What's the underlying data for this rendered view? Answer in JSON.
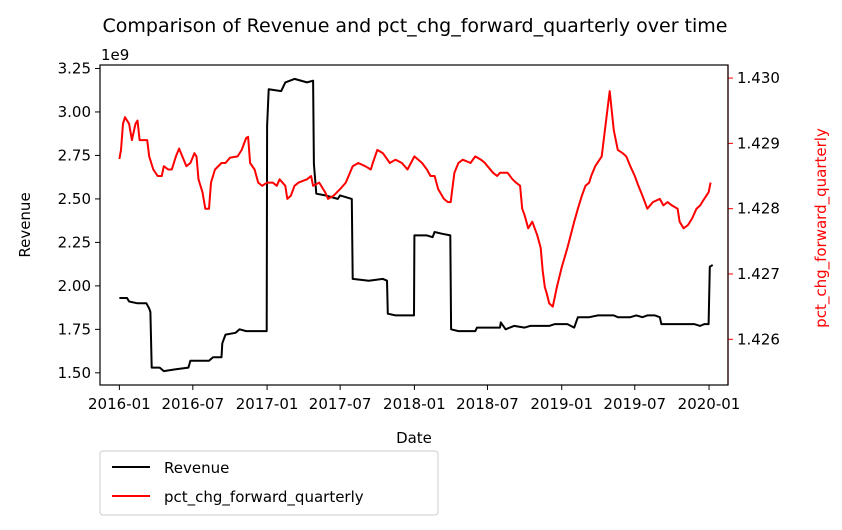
{
  "chart_data": {
    "type": "line",
    "title": "Comparison of Revenue and pct_chg_forward_quarterly over time",
    "xlabel": "Date",
    "ylabel": "Revenue",
    "y2label": "pct_chg_forward_quarterly",
    "y_offset_text": "1e9",
    "x_range": [
      "2015-11-14",
      "2020-02-17"
    ],
    "xticks": [
      "2016-01",
      "2016-07",
      "2017-01",
      "2017-07",
      "2018-01",
      "2018-07",
      "2019-01",
      "2019-07",
      "2020-01"
    ],
    "ylim": [
      1.43,
      3.27
    ],
    "yticks": [
      1.5,
      1.75,
      2.0,
      2.25,
      2.5,
      2.75,
      3.0,
      3.25
    ],
    "ytick_labels": [
      "1.50",
      "1.75",
      "2.00",
      "2.25",
      "2.50",
      "2.75",
      "3.00",
      "3.25"
    ],
    "y2lim": [
      1.4253,
      1.4302
    ],
    "y2ticks": [
      1.426,
      1.427,
      1.428,
      1.429,
      1.43
    ],
    "y2tick_labels": [
      "1.426",
      "1.427",
      "1.428",
      "1.429",
      "1.430"
    ],
    "legend_position": "below-left",
    "series": [
      {
        "name": "Revenue",
        "axis": "left",
        "color": "#000000",
        "points": [
          [
            "2016-01-01",
            1.93
          ],
          [
            "2016-01-20",
            1.93
          ],
          [
            "2016-01-25",
            1.91
          ],
          [
            "2016-02-15",
            1.9
          ],
          [
            "2016-03-08",
            1.9
          ],
          [
            "2016-03-15",
            1.87
          ],
          [
            "2016-03-18",
            1.85
          ],
          [
            "2016-03-21",
            1.53
          ],
          [
            "2016-04-10",
            1.53
          ],
          [
            "2016-04-20",
            1.51
          ],
          [
            "2016-05-20",
            1.52
          ],
          [
            "2016-06-20",
            1.53
          ],
          [
            "2016-06-25",
            1.57
          ],
          [
            "2016-07-10",
            1.57
          ],
          [
            "2016-08-10",
            1.57
          ],
          [
            "2016-08-20",
            1.59
          ],
          [
            "2016-09-10",
            1.59
          ],
          [
            "2016-09-12",
            1.67
          ],
          [
            "2016-09-20",
            1.72
          ],
          [
            "2016-10-15",
            1.73
          ],
          [
            "2016-10-25",
            1.75
          ],
          [
            "2016-11-10",
            1.74
          ],
          [
            "2016-12-25",
            1.74
          ],
          [
            "2016-12-31",
            1.74
          ],
          [
            "2017-01-01",
            2.92
          ],
          [
            "2017-01-05",
            3.13
          ],
          [
            "2017-02-05",
            3.12
          ],
          [
            "2017-02-15",
            3.17
          ],
          [
            "2017-03-10",
            3.19
          ],
          [
            "2017-04-10",
            3.17
          ],
          [
            "2017-04-25",
            3.18
          ],
          [
            "2017-04-27",
            2.7
          ],
          [
            "2017-05-03",
            2.53
          ],
          [
            "2017-05-25",
            2.52
          ],
          [
            "2017-06-25",
            2.5
          ],
          [
            "2017-07-01",
            2.52
          ],
          [
            "2017-07-30",
            2.5
          ],
          [
            "2017-08-01",
            2.04
          ],
          [
            "2017-09-10",
            2.03
          ],
          [
            "2017-10-15",
            2.04
          ],
          [
            "2017-10-25",
            2.03
          ],
          [
            "2017-10-27",
            1.84
          ],
          [
            "2017-11-15",
            1.83
          ],
          [
            "2017-12-20",
            1.83
          ],
          [
            "2017-12-31",
            1.83
          ],
          [
            "2018-01-01",
            2.29
          ],
          [
            "2018-02-01",
            2.29
          ],
          [
            "2018-02-15",
            2.28
          ],
          [
            "2018-02-20",
            2.31
          ],
          [
            "2018-03-10",
            2.3
          ],
          [
            "2018-03-31",
            2.29
          ],
          [
            "2018-04-02",
            1.75
          ],
          [
            "2018-04-20",
            1.74
          ],
          [
            "2018-06-01",
            1.74
          ],
          [
            "2018-06-05",
            1.76
          ],
          [
            "2018-07-10",
            1.76
          ],
          [
            "2018-08-01",
            1.76
          ],
          [
            "2018-08-03",
            1.79
          ],
          [
            "2018-08-15",
            1.75
          ],
          [
            "2018-09-05",
            1.77
          ],
          [
            "2018-10-01",
            1.76
          ],
          [
            "2018-10-15",
            1.77
          ],
          [
            "2018-11-01",
            1.77
          ],
          [
            "2018-12-01",
            1.77
          ],
          [
            "2018-12-15",
            1.78
          ],
          [
            "2019-01-15",
            1.78
          ],
          [
            "2019-02-01",
            1.76
          ],
          [
            "2019-02-10",
            1.82
          ],
          [
            "2019-03-10",
            1.82
          ],
          [
            "2019-04-01",
            1.83
          ],
          [
            "2019-05-10",
            1.83
          ],
          [
            "2019-05-20",
            1.82
          ],
          [
            "2019-06-20",
            1.82
          ],
          [
            "2019-07-05",
            1.83
          ],
          [
            "2019-07-20",
            1.82
          ],
          [
            "2019-08-01",
            1.83
          ],
          [
            "2019-08-20",
            1.83
          ],
          [
            "2019-09-01",
            1.82
          ],
          [
            "2019-09-05",
            1.78
          ],
          [
            "2019-10-10",
            1.78
          ],
          [
            "2019-10-20",
            1.78
          ],
          [
            "2019-11-10",
            1.78
          ],
          [
            "2019-11-25",
            1.78
          ],
          [
            "2019-12-10",
            1.77
          ],
          [
            "2019-12-20",
            1.78
          ],
          [
            "2019-12-31",
            1.78
          ],
          [
            "2020-01-03",
            2.11
          ],
          [
            "2020-01-10",
            2.12
          ]
        ]
      },
      {
        "name": "pct_chg_forward_quarterly",
        "axis": "right",
        "color": "#ff0000",
        "points": [
          [
            "2016-01-01",
            1.42876
          ],
          [
            "2016-01-05",
            1.4289
          ],
          [
            "2016-01-10",
            1.4293
          ],
          [
            "2016-01-15",
            1.4294
          ],
          [
            "2016-01-25",
            1.4293
          ],
          [
            "2016-02-01",
            1.42905
          ],
          [
            "2016-02-10",
            1.4293
          ],
          [
            "2016-02-15",
            1.42935
          ],
          [
            "2016-02-20",
            1.42905
          ],
          [
            "2016-03-10",
            1.42905
          ],
          [
            "2016-03-15",
            1.4288
          ],
          [
            "2016-03-25",
            1.4286
          ],
          [
            "2016-04-05",
            1.4285
          ],
          [
            "2016-04-15",
            1.4285
          ],
          [
            "2016-04-20",
            1.42865
          ],
          [
            "2016-05-01",
            1.4286
          ],
          [
            "2016-05-10",
            1.4286
          ],
          [
            "2016-05-20",
            1.4288
          ],
          [
            "2016-05-28",
            1.42892
          ],
          [
            "2016-06-05",
            1.4288
          ],
          [
            "2016-06-15",
            1.42865
          ],
          [
            "2016-06-25",
            1.4287
          ],
          [
            "2016-07-05",
            1.42885
          ],
          [
            "2016-07-10",
            1.4288
          ],
          [
            "2016-07-15",
            1.42845
          ],
          [
            "2016-07-25",
            1.42825
          ],
          [
            "2016-08-01",
            1.428
          ],
          [
            "2016-08-10",
            1.428
          ],
          [
            "2016-08-15",
            1.4284
          ],
          [
            "2016-08-25",
            1.4286
          ],
          [
            "2016-09-10",
            1.4287
          ],
          [
            "2016-09-20",
            1.4287
          ],
          [
            "2016-10-01",
            1.42878
          ],
          [
            "2016-10-20",
            1.4288
          ],
          [
            "2016-10-30",
            1.4289
          ],
          [
            "2016-11-10",
            1.42908
          ],
          [
            "2016-11-15",
            1.4291
          ],
          [
            "2016-11-20",
            1.4287
          ],
          [
            "2016-12-01",
            1.4286
          ],
          [
            "2016-12-10",
            1.4284
          ],
          [
            "2016-12-20",
            1.42835
          ],
          [
            "2017-01-01",
            1.4284
          ],
          [
            "2017-01-15",
            1.4284
          ],
          [
            "2017-01-25",
            1.42835
          ],
          [
            "2017-02-01",
            1.42845
          ],
          [
            "2017-02-15",
            1.42835
          ],
          [
            "2017-02-20",
            1.42815
          ],
          [
            "2017-03-01",
            1.4282
          ],
          [
            "2017-03-10",
            1.42835
          ],
          [
            "2017-03-20",
            1.4284
          ],
          [
            "2017-04-10",
            1.42845
          ],
          [
            "2017-04-20",
            1.4285
          ],
          [
            "2017-04-25",
            1.42835
          ],
          [
            "2017-05-10",
            1.4284
          ],
          [
            "2017-05-20",
            1.4283
          ],
          [
            "2017-05-25",
            1.42825
          ],
          [
            "2017-06-01",
            1.42815
          ],
          [
            "2017-06-15",
            1.4282
          ],
          [
            "2017-07-01",
            1.4283
          ],
          [
            "2017-07-15",
            1.4284
          ],
          [
            "2017-08-01",
            1.42865
          ],
          [
            "2017-08-15",
            1.4287
          ],
          [
            "2017-09-01",
            1.42865
          ],
          [
            "2017-09-15",
            1.4286
          ],
          [
            "2017-09-20",
            1.4287
          ],
          [
            "2017-10-01",
            1.4289
          ],
          [
            "2017-10-15",
            1.42885
          ],
          [
            "2017-11-01",
            1.4287
          ],
          [
            "2017-11-15",
            1.42875
          ],
          [
            "2017-12-01",
            1.4287
          ],
          [
            "2017-12-15",
            1.4286
          ],
          [
            "2018-01-01",
            1.4288
          ],
          [
            "2018-01-20",
            1.4287
          ],
          [
            "2018-02-01",
            1.4286
          ],
          [
            "2018-02-10",
            1.4285
          ],
          [
            "2018-02-20",
            1.4285
          ],
          [
            "2018-03-01",
            1.4283
          ],
          [
            "2018-03-15",
            1.42815
          ],
          [
            "2018-03-25",
            1.4281
          ],
          [
            "2018-04-01",
            1.4281
          ],
          [
            "2018-04-05",
            1.4283
          ],
          [
            "2018-04-10",
            1.42855
          ],
          [
            "2018-04-20",
            1.4287
          ],
          [
            "2018-05-01",
            1.42875
          ],
          [
            "2018-05-20",
            1.4287
          ],
          [
            "2018-06-01",
            1.4288
          ],
          [
            "2018-06-15",
            1.42875
          ],
          [
            "2018-06-25",
            1.4287
          ],
          [
            "2018-07-01",
            1.42865
          ],
          [
            "2018-07-15",
            1.42855
          ],
          [
            "2018-07-25",
            1.4285
          ],
          [
            "2018-08-01",
            1.42855
          ],
          [
            "2018-08-20",
            1.42855
          ],
          [
            "2018-09-01",
            1.42845
          ],
          [
            "2018-09-10",
            1.4284
          ],
          [
            "2018-09-20",
            1.42835
          ],
          [
            "2018-09-25",
            1.428
          ],
          [
            "2018-10-01",
            1.4279
          ],
          [
            "2018-10-10",
            1.4277
          ],
          [
            "2018-10-20",
            1.4278
          ],
          [
            "2018-11-01",
            1.4276
          ],
          [
            "2018-11-10",
            1.4274
          ],
          [
            "2018-11-15",
            1.42705
          ],
          [
            "2018-11-20",
            1.4268
          ],
          [
            "2018-11-25",
            1.4267
          ],
          [
            "2018-12-01",
            1.42655
          ],
          [
            "2018-12-10",
            1.4265
          ],
          [
            "2018-12-20",
            1.4268
          ],
          [
            "2019-01-01",
            1.4271
          ],
          [
            "2019-01-15",
            1.4274
          ],
          [
            "2019-02-01",
            1.4278
          ],
          [
            "2019-02-10",
            1.428
          ],
          [
            "2019-02-20",
            1.4282
          ],
          [
            "2019-03-01",
            1.42835
          ],
          [
            "2019-03-10",
            1.4284
          ],
          [
            "2019-03-15",
            1.4285
          ],
          [
            "2019-03-25",
            1.42865
          ],
          [
            "2019-04-10",
            1.4288
          ],
          [
            "2019-04-20",
            1.4293
          ],
          [
            "2019-04-30",
            1.4298
          ],
          [
            "2019-05-10",
            1.4292
          ],
          [
            "2019-05-20",
            1.4289
          ],
          [
            "2019-06-01",
            1.42885
          ],
          [
            "2019-06-10",
            1.4288
          ],
          [
            "2019-06-20",
            1.42865
          ],
          [
            "2019-07-01",
            1.4285
          ],
          [
            "2019-07-10",
            1.42835
          ],
          [
            "2019-07-20",
            1.4282
          ],
          [
            "2019-08-01",
            1.428
          ],
          [
            "2019-08-15",
            1.4281
          ],
          [
            "2019-09-01",
            1.42815
          ],
          [
            "2019-09-10",
            1.42805
          ],
          [
            "2019-09-20",
            1.4281
          ],
          [
            "2019-10-01",
            1.42805
          ],
          [
            "2019-10-15",
            1.428
          ],
          [
            "2019-10-20",
            1.4278
          ],
          [
            "2019-10-30",
            1.4277
          ],
          [
            "2019-11-10",
            1.42775
          ],
          [
            "2019-11-20",
            1.42785
          ],
          [
            "2019-12-01",
            1.428
          ],
          [
            "2019-12-10",
            1.42805
          ],
          [
            "2019-12-20",
            1.42815
          ],
          [
            "2019-12-31",
            1.42825
          ],
          [
            "2020-01-05",
            1.4284
          ]
        ]
      }
    ]
  }
}
